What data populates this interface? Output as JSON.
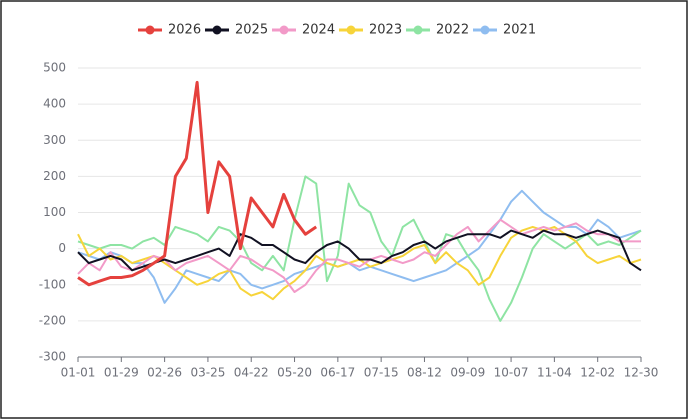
{
  "chart_data": {
    "type": "line",
    "categories": [
      "01-01",
      null,
      null,
      null,
      "01-29",
      null,
      null,
      null,
      "02-26",
      null,
      null,
      null,
      "03-25",
      null,
      null,
      null,
      "04-22",
      null,
      null,
      null,
      "05-20",
      null,
      null,
      null,
      "06-17",
      null,
      null,
      null,
      "07-15",
      null,
      null,
      null,
      "08-12",
      null,
      null,
      null,
      "09-09",
      null,
      null,
      null,
      "10-07",
      null,
      null,
      null,
      "11-04",
      null,
      null,
      null,
      "12-02",
      null,
      null,
      null,
      "12-30"
    ],
    "series": [
      {
        "name": "2026",
        "color": "#e5413d",
        "values": [
          -80,
          -100,
          -90,
          -80,
          -80,
          -75,
          -60,
          -40,
          -20,
          200,
          250,
          460,
          100,
          240,
          200,
          0,
          140,
          100,
          60,
          150,
          80,
          40,
          60,
          null,
          null,
          null,
          null,
          null,
          null,
          null,
          null,
          null,
          null,
          null,
          null,
          null,
          null,
          null,
          null,
          null,
          null,
          null,
          null,
          null,
          null,
          null,
          null,
          null,
          null,
          null,
          null,
          null,
          null
        ]
      },
      {
        "name": "2025",
        "color": "#111122",
        "values": [
          -10,
          -40,
          -30,
          -20,
          -30,
          -60,
          -50,
          -40,
          -30,
          -40,
          -30,
          -20,
          -10,
          0,
          -20,
          40,
          30,
          10,
          10,
          -10,
          -30,
          -40,
          -10,
          10,
          20,
          0,
          -30,
          -30,
          -40,
          -20,
          -10,
          10,
          20,
          0,
          20,
          30,
          40,
          40,
          40,
          30,
          50,
          40,
          30,
          50,
          40,
          40,
          30,
          40,
          50,
          40,
          30,
          -40,
          -60
        ]
      },
      {
        "name": "2024",
        "color": "#f29ac8",
        "values": [
          -70,
          -40,
          -60,
          -10,
          -50,
          -60,
          -40,
          -20,
          -30,
          -60,
          -40,
          -30,
          -20,
          -40,
          -60,
          -20,
          -30,
          -50,
          -60,
          -80,
          -120,
          -100,
          -60,
          -30,
          -30,
          -40,
          -50,
          -30,
          -20,
          -30,
          -40,
          -30,
          -10,
          -20,
          10,
          40,
          60,
          20,
          50,
          80,
          60,
          40,
          50,
          60,
          50,
          60,
          70,
          50,
          40,
          40,
          20,
          20,
          20
        ]
      },
      {
        "name": "2023",
        "color": "#f7d43a",
        "values": [
          40,
          -20,
          0,
          -30,
          -20,
          -40,
          -30,
          -20,
          -40,
          -60,
          -80,
          -100,
          -90,
          -70,
          -60,
          -110,
          -130,
          -120,
          -140,
          -110,
          -90,
          -60,
          -20,
          -40,
          -50,
          -40,
          -30,
          -50,
          -40,
          -30,
          -20,
          0,
          10,
          -40,
          -10,
          -40,
          -60,
          -100,
          -80,
          -20,
          30,
          50,
          60,
          50,
          60,
          40,
          20,
          -20,
          -40,
          -30,
          -20,
          -40,
          -30
        ]
      },
      {
        "name": "2022",
        "color": "#8ee4a3",
        "values": [
          20,
          10,
          0,
          10,
          10,
          0,
          20,
          30,
          10,
          60,
          50,
          40,
          20,
          60,
          50,
          20,
          -40,
          -60,
          -20,
          -60,
          80,
          200,
          180,
          -90,
          -20,
          180,
          120,
          100,
          20,
          -20,
          60,
          80,
          20,
          -40,
          40,
          30,
          -20,
          -60,
          -140,
          -200,
          -150,
          -80,
          0,
          40,
          20,
          0,
          20,
          40,
          10,
          20,
          10,
          30,
          50
        ]
      },
      {
        "name": "2021",
        "color": "#8fbdf0",
        "values": [
          -10,
          -20,
          -30,
          -10,
          -20,
          -40,
          -40,
          -80,
          -150,
          -110,
          -60,
          -70,
          -80,
          -90,
          -60,
          -70,
          -100,
          -110,
          -100,
          -90,
          -70,
          -60,
          -50,
          -40,
          -50,
          -40,
          -60,
          -50,
          -60,
          -70,
          -80,
          -90,
          -80,
          -70,
          -60,
          -40,
          -20,
          0,
          40,
          80,
          130,
          160,
          130,
          100,
          80,
          60,
          60,
          40,
          80,
          60,
          30,
          40,
          50
        ]
      }
    ],
    "ylim": [
      -300,
      500
    ],
    "yticks": [
      -300,
      -200,
      -100,
      0,
      100,
      200,
      300,
      400,
      500
    ],
    "grid": true
  }
}
